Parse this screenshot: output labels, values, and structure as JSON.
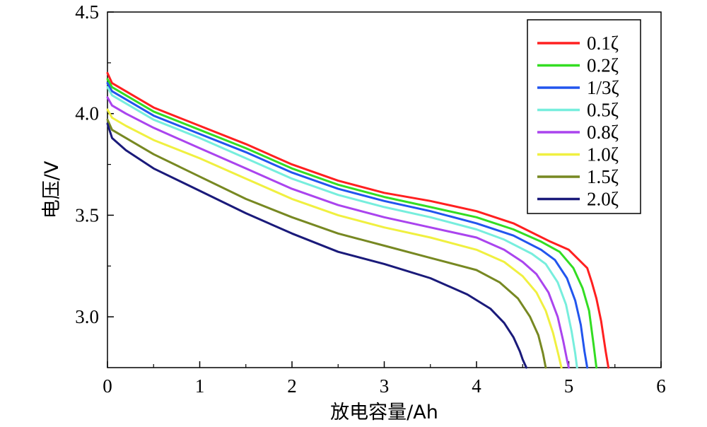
{
  "chart_data": {
    "type": "line",
    "title": "",
    "xlabel": "放电容量/Ah",
    "ylabel": "电压/V",
    "xlim": [
      0,
      6
    ],
    "ylim": [
      2.75,
      4.5
    ],
    "x_ticks": [
      "0",
      "1",
      "2",
      "3",
      "4",
      "5",
      "6"
    ],
    "y_ticks": [
      "3.0",
      "3.5",
      "4.0",
      "4.5"
    ],
    "grid": false,
    "legend_position": "top-right",
    "series": [
      {
        "name": "0.1ζ",
        "color": "#ff2020",
        "x": [
          0,
          0.05,
          0.2,
          0.5,
          1.0,
          1.5,
          2.0,
          2.5,
          3.0,
          3.5,
          4.0,
          4.4,
          4.8,
          5.0,
          5.2,
          5.25,
          5.3,
          5.35,
          5.4,
          5.43
        ],
        "y": [
          4.2,
          4.15,
          4.11,
          4.03,
          3.94,
          3.85,
          3.75,
          3.67,
          3.61,
          3.57,
          3.52,
          3.46,
          3.37,
          3.33,
          3.24,
          3.17,
          3.09,
          2.98,
          2.83,
          2.75
        ]
      },
      {
        "name": "0.2ζ",
        "color": "#33dd22",
        "x": [
          0,
          0.05,
          0.2,
          0.5,
          1.0,
          1.5,
          2.0,
          2.5,
          3.0,
          3.5,
          4.0,
          4.4,
          4.7,
          4.9,
          5.05,
          5.15,
          5.22,
          5.27,
          5.3
        ],
        "y": [
          4.17,
          4.13,
          4.09,
          4.01,
          3.92,
          3.83,
          3.73,
          3.65,
          3.59,
          3.54,
          3.49,
          3.43,
          3.37,
          3.32,
          3.24,
          3.14,
          3.03,
          2.86,
          2.75
        ]
      },
      {
        "name": "1/3ζ",
        "color": "#2255ee",
        "x": [
          0,
          0.05,
          0.2,
          0.5,
          1.0,
          1.5,
          2.0,
          2.5,
          3.0,
          3.5,
          4.0,
          4.4,
          4.7,
          4.85,
          4.98,
          5.07,
          5.13,
          5.17,
          5.2
        ],
        "y": [
          4.15,
          4.11,
          4.07,
          3.99,
          3.9,
          3.81,
          3.71,
          3.63,
          3.57,
          3.52,
          3.46,
          3.4,
          3.33,
          3.28,
          3.19,
          3.08,
          2.96,
          2.83,
          2.75
        ]
      },
      {
        "name": "0.5ζ",
        "color": "#77eedd",
        "x": [
          0,
          0.05,
          0.2,
          0.5,
          1.0,
          1.5,
          2.0,
          2.5,
          3.0,
          3.5,
          4.0,
          4.3,
          4.6,
          4.75,
          4.88,
          4.97,
          5.03,
          5.07,
          5.09
        ],
        "y": [
          4.13,
          4.09,
          4.05,
          3.97,
          3.88,
          3.78,
          3.68,
          3.6,
          3.54,
          3.49,
          3.43,
          3.38,
          3.31,
          3.26,
          3.17,
          3.06,
          2.93,
          2.82,
          2.75
        ]
      },
      {
        "name": "0.8ζ",
        "color": "#aa44ee",
        "x": [
          0,
          0.05,
          0.2,
          0.5,
          1.0,
          1.5,
          2.0,
          2.5,
          3.0,
          3.5,
          4.0,
          4.3,
          4.5,
          4.65,
          4.78,
          4.88,
          4.94,
          4.98,
          5.0
        ],
        "y": [
          4.08,
          4.04,
          4.0,
          3.93,
          3.83,
          3.73,
          3.63,
          3.55,
          3.49,
          3.44,
          3.39,
          3.33,
          3.27,
          3.21,
          3.12,
          3.0,
          2.88,
          2.79,
          2.75
        ]
      },
      {
        "name": "1.0ζ",
        "color": "#f0f040",
        "x": [
          0,
          0.05,
          0.2,
          0.5,
          1.0,
          1.5,
          2.0,
          2.5,
          3.0,
          3.5,
          4.0,
          4.3,
          4.5,
          4.65,
          4.75,
          4.83,
          4.89,
          4.92
        ],
        "y": [
          4.02,
          3.98,
          3.94,
          3.87,
          3.78,
          3.68,
          3.58,
          3.5,
          3.44,
          3.39,
          3.33,
          3.27,
          3.2,
          3.12,
          3.03,
          2.92,
          2.81,
          2.75
        ]
      },
      {
        "name": "1.5ζ",
        "color": "#778822",
        "x": [
          0,
          0.05,
          0.2,
          0.5,
          1.0,
          1.5,
          2.0,
          2.5,
          3.0,
          3.5,
          4.0,
          4.25,
          4.45,
          4.58,
          4.67,
          4.72,
          4.75
        ],
        "y": [
          3.97,
          3.92,
          3.88,
          3.8,
          3.69,
          3.58,
          3.49,
          3.41,
          3.35,
          3.29,
          3.23,
          3.17,
          3.09,
          3.0,
          2.91,
          2.82,
          2.75
        ]
      },
      {
        "name": "2.0ζ",
        "color": "#1a1a7a",
        "x": [
          0,
          0.05,
          0.2,
          0.5,
          1.0,
          1.5,
          2.0,
          2.5,
          3.0,
          3.5,
          3.9,
          4.15,
          4.3,
          4.4,
          4.47,
          4.5,
          4.52,
          4.54
        ],
        "y": [
          3.95,
          3.88,
          3.82,
          3.73,
          3.62,
          3.51,
          3.41,
          3.32,
          3.26,
          3.19,
          3.11,
          3.04,
          2.97,
          2.9,
          2.83,
          2.79,
          2.77,
          2.75
        ]
      }
    ]
  }
}
